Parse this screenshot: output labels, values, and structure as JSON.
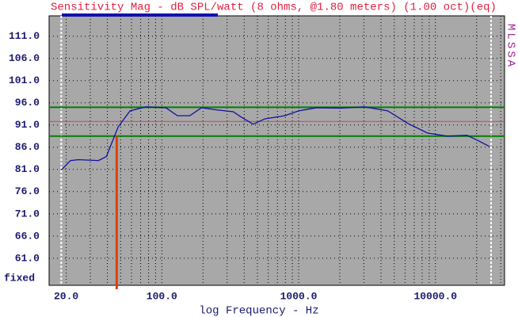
{
  "chart_data": {
    "type": "line",
    "title": "Sensitivity Mag - dB SPL/watt (8 ohms, @1.80 meters) (1.00 oct)(eq)",
    "xlabel": "log Frequency - Hz",
    "side_label": "MLSSA",
    "y_note": "fixed",
    "log_x": true,
    "grid": true,
    "xlim": [
      15,
      32000
    ],
    "ylim": [
      54.9,
      115.6
    ],
    "xticks": [
      {
        "value": 20,
        "label": "20.0"
      },
      {
        "value": 100,
        "label": "100.0"
      },
      {
        "value": 1000,
        "label": "1000.0"
      },
      {
        "value": 10000,
        "label": "10000.0"
      }
    ],
    "xminorticks": [
      30,
      40,
      50,
      60,
      70,
      80,
      90,
      200,
      300,
      400,
      500,
      600,
      700,
      800,
      900,
      2000,
      3000,
      4000,
      5000,
      6000,
      7000,
      8000,
      9000,
      20000,
      30000
    ],
    "yticks": [
      {
        "value": 111,
        "label": "111.0"
      },
      {
        "value": 106,
        "label": "106.0"
      },
      {
        "value": 101,
        "label": "101.0"
      },
      {
        "value": 96,
        "label": "96.0"
      },
      {
        "value": 91,
        "label": "91.0"
      },
      {
        "value": 86,
        "label": "86.0"
      },
      {
        "value": 81,
        "label": "81.0"
      },
      {
        "value": 76,
        "label": "76.0"
      },
      {
        "value": 71,
        "label": "71.0"
      },
      {
        "value": 66,
        "label": "66.0"
      },
      {
        "value": 61,
        "label": "61.0"
      }
    ],
    "series": [
      {
        "color": "#1010a0",
        "x": [
          18.6,
          21.5,
          24.6,
          34.4,
          39.3,
          48,
          58.6,
          76.5,
          106.9,
          130,
          160,
          195,
          254,
          333,
          380,
          465,
          567,
          792,
          1000,
          1350,
          2020,
          3020,
          4480,
          6260,
          8750,
          12200,
          17000,
          20800,
          24700
        ],
        "values": [
          81,
          83,
          83.2,
          83,
          83.9,
          90.6,
          94.2,
          95.1,
          94.9,
          93.1,
          93.1,
          94.9,
          94.4,
          94,
          92.8,
          91.2,
          92.4,
          93.1,
          94.2,
          94.9,
          94.8,
          95.1,
          94.2,
          91.4,
          89.2,
          88.5,
          88.7,
          87.4,
          86.2
        ]
      }
    ],
    "limit_lines": {
      "color": "#008000",
      "values": [
        95,
        88.5
      ]
    },
    "mean_line": {
      "color": "#d04060",
      "value": 91.8
    },
    "marker": {
      "color": "#e04000",
      "x": 46.8,
      "top": 88.5
    },
    "band_limits": {
      "color": "#ffffff",
      "x": [
        18.4,
        25500
      ]
    }
  }
}
